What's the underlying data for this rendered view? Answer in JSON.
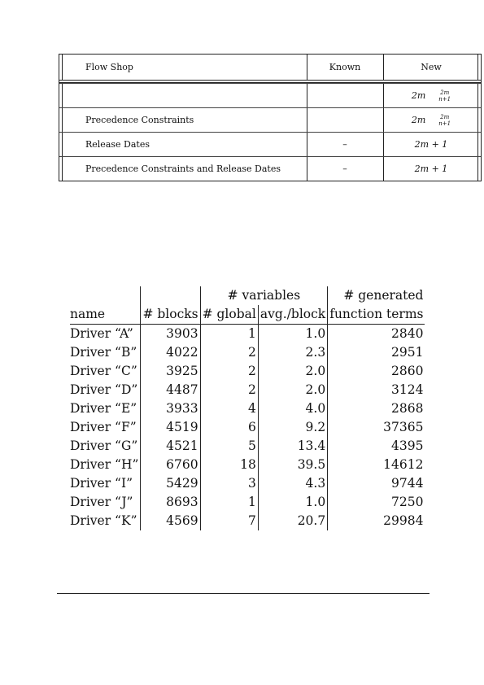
{
  "flow_shop_table": {
    "header": {
      "col_label": "Flow Shop",
      "col_known": "Known",
      "col_new": "New"
    },
    "rows": [
      {
        "label": "",
        "known": "",
        "new_main": "2m",
        "new_frac_num": "2m",
        "new_frac_den": "n+1"
      },
      {
        "label": "Precedence Constraints",
        "known": "",
        "new_main": "2m",
        "new_frac_num": "2m",
        "new_frac_den": "n+1"
      },
      {
        "label": "Release Dates",
        "known": "–",
        "new_main": "2m + 1",
        "new_frac_num": "",
        "new_frac_den": ""
      },
      {
        "label": "Precedence Constraints and Release Dates",
        "known": "–",
        "new_main": "2m + 1",
        "new_frac_num": "",
        "new_frac_den": ""
      }
    ]
  },
  "driver_table": {
    "header": {
      "variables_group": "# variables",
      "generated_group": "# generated",
      "name": "name",
      "blocks": "# blocks",
      "global": "# global",
      "avg_block": "avg./block",
      "function_terms": "function terms"
    },
    "rows": [
      {
        "name": "Driver “A”",
        "blocks": "3903",
        "global": "1",
        "avg": "1.0",
        "terms": "2840"
      },
      {
        "name": "Driver “B”",
        "blocks": "4022",
        "global": "2",
        "avg": "2.3",
        "terms": "2951"
      },
      {
        "name": "Driver “C”",
        "blocks": "3925",
        "global": "2",
        "avg": "2.0",
        "terms": "2860"
      },
      {
        "name": "Driver “D”",
        "blocks": "4487",
        "global": "2",
        "avg": "2.0",
        "terms": "3124"
      },
      {
        "name": "Driver “E”",
        "blocks": "3933",
        "global": "4",
        "avg": "4.0",
        "terms": "2868"
      },
      {
        "name": "Driver “F”",
        "blocks": "4519",
        "global": "6",
        "avg": "9.2",
        "terms": "37365"
      },
      {
        "name": "Driver “G”",
        "blocks": "4521",
        "global": "5",
        "avg": "13.4",
        "terms": "4395"
      },
      {
        "name": "Driver “H”",
        "blocks": "6760",
        "global": "18",
        "avg": "39.5",
        "terms": "14612"
      },
      {
        "name": "Driver “I”",
        "blocks": "5429",
        "global": "3",
        "avg": "4.3",
        "terms": "9744"
      },
      {
        "name": "Driver “J”",
        "blocks": "8693",
        "global": "1",
        "avg": "1.0",
        "terms": "7250"
      },
      {
        "name": "Driver “K”",
        "blocks": "4569",
        "global": "7",
        "avg": "20.7",
        "terms": "29984"
      }
    ]
  }
}
